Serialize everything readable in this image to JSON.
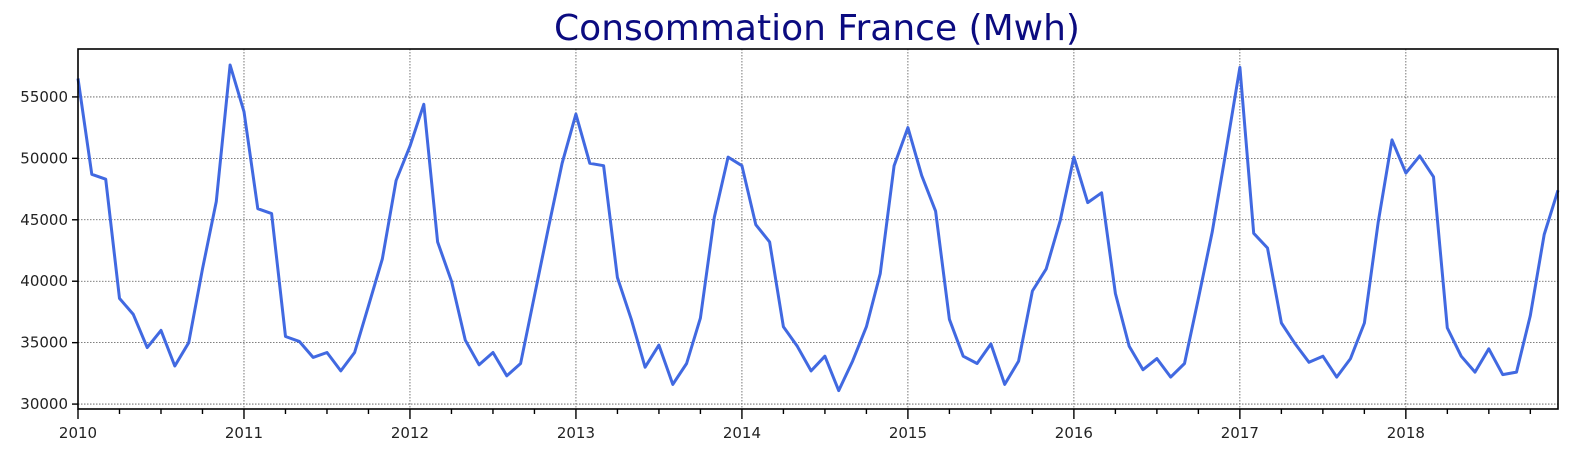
{
  "chart_data": {
    "type": "line",
    "title": "Consommation France (Mwh)",
    "xlabel": "",
    "ylabel": "",
    "x_start": "2010-01",
    "x_frequency": "monthly",
    "x_tick_labels": [
      "2010",
      "2011",
      "2012",
      "2013",
      "2014",
      "2015",
      "2016",
      "2017",
      "2018"
    ],
    "y_ticks": [
      30000,
      35000,
      40000,
      45000,
      50000,
      55000
    ],
    "xlim": [
      "2010-01",
      "2018-12"
    ],
    "ylim": [
      29600,
      58900
    ],
    "grid": true,
    "legend": "none",
    "colors": {
      "line": "#4169e1",
      "title": "#0b0b80"
    },
    "series": [
      {
        "values": [
          56500,
          48700,
          48300,
          38600,
          37300,
          34600,
          36000,
          33100,
          35000,
          41000,
          46500,
          57600,
          53800,
          45900,
          45500,
          35500,
          35100,
          33800,
          34200,
          32700,
          34200,
          38000,
          41800,
          48200,
          51000,
          54400,
          43200,
          40000,
          35200,
          33200,
          34200,
          32300,
          33300,
          38800,
          44300,
          49600,
          53600,
          49600,
          49400,
          40300,
          36900,
          33000,
          34800,
          31600,
          33300,
          37000,
          45200,
          50100,
          49400,
          44600,
          43200,
          36300,
          34700,
          32700,
          33900,
          31100,
          33500,
          36300,
          40600,
          49400,
          52500,
          48600,
          45700,
          36900,
          33900,
          33300,
          34900,
          31600,
          33500,
          39200,
          41000,
          44900,
          50100,
          46400,
          47200,
          39000,
          34700,
          32800,
          33700,
          32200,
          33300,
          38600,
          44000,
          50600,
          57400,
          43900,
          42700,
          36600,
          34900,
          33400,
          33900,
          32200,
          33700,
          36600,
          44800,
          51500,
          48800,
          50200,
          48500,
          36200,
          33900,
          32600,
          34500,
          32400,
          32600,
          37200,
          43800,
          47400
        ]
      }
    ]
  }
}
